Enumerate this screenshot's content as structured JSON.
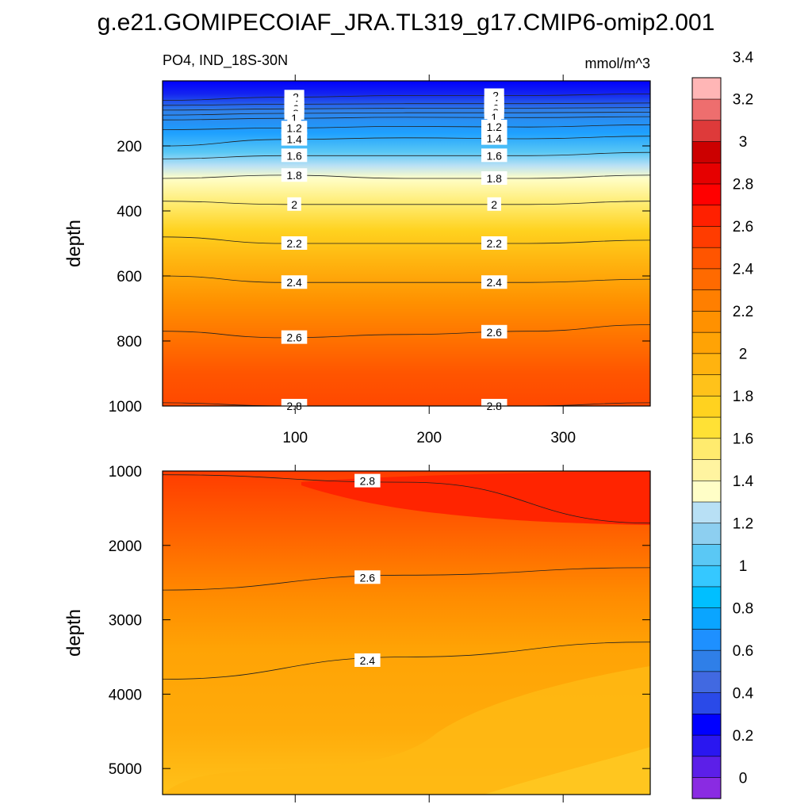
{
  "title": "g.e21.GOMIPECOIAF_JRA.TL319_g17.CMIP6-omip2.001",
  "variable_label": "PO4, IND_18S-30N",
  "units_label": "mmol/m^3",
  "colorbar": {
    "labels": [
      "0",
      "0.2",
      "0.4",
      "0.6",
      "0.8",
      "1",
      "1.2",
      "1.4",
      "1.6",
      "1.8",
      "2",
      "2.2",
      "2.4",
      "2.6",
      "2.8",
      "3",
      "3.2",
      "3.4"
    ],
    "colors": [
      "#8a2be2",
      "#5c1fe8",
      "#2a17f0",
      "#0000ff",
      "#2a4ae8",
      "#4169e1",
      "#2f7fe8",
      "#1e90ff",
      "#0aa5ff",
      "#00bfff",
      "#35c8ff",
      "#5ac8f5",
      "#8dcff0",
      "#b8e0f5",
      "#fffec7",
      "#fff4a0",
      "#ffeb6e",
      "#ffe135",
      "#ffd21f",
      "#ffc21a",
      "#ffb30f",
      "#ffa305",
      "#ff9100",
      "#ff7f00",
      "#ff6a00",
      "#ff5500",
      "#ff3c00",
      "#ff2000",
      "#ff0000",
      "#e60000",
      "#cc0000",
      "#de3a3a",
      "#ee6e6e",
      "#ffb6b6"
    ]
  },
  "chart_data": [
    {
      "type": "contour",
      "panel": "upper",
      "ylabel": "depth",
      "xlim": [
        1,
        365
      ],
      "ylim": [
        1000,
        0
      ],
      "xticks": [
        "100",
        "200",
        "300"
      ],
      "yticks": [
        "200",
        "400",
        "600",
        "800",
        "1000"
      ],
      "contours": [
        {
          "label": ".2",
          "depth": [
            60,
            50,
            45,
            45,
            40
          ]
        },
        {
          "label": ".4",
          "depth": [
            75,
            72,
            70,
            70,
            68
          ]
        },
        {
          "label": ".6",
          "depth": [
            90,
            86,
            84,
            84,
            82
          ]
        },
        {
          "label": ".8",
          "depth": [
            105,
            100,
            98,
            98,
            96
          ]
        },
        {
          "label": "1",
          "depth": [
            120,
            115,
            112,
            113,
            110
          ]
        },
        {
          "label": "1.2",
          "depth": [
            150,
            145,
            140,
            142,
            135
          ]
        },
        {
          "label": "1.4",
          "depth": [
            200,
            180,
            175,
            178,
            170
          ]
        },
        {
          "label": "1.6",
          "depth": [
            240,
            230,
            230,
            230,
            220
          ]
        },
        {
          "label": "1.8",
          "depth": [
            300,
            290,
            300,
            300,
            290
          ]
        },
        {
          "label": "2",
          "depth": [
            370,
            380,
            380,
            380,
            370
          ]
        },
        {
          "label": "2.2",
          "depth": [
            480,
            500,
            500,
            500,
            490
          ]
        },
        {
          "label": "2.4",
          "depth": [
            600,
            620,
            620,
            620,
            610
          ]
        },
        {
          "label": "2.6",
          "depth": [
            770,
            790,
            780,
            770,
            750
          ]
        },
        {
          "label": "2.8",
          "depth": [
            990,
            1000,
            1000,
            1000,
            990
          ]
        }
      ]
    },
    {
      "type": "contour",
      "panel": "lower",
      "ylabel": "depth",
      "xlim": [
        1,
        365
      ],
      "ylim": [
        5350,
        1000
      ],
      "yticks": [
        "1000",
        "2000",
        "3000",
        "4000",
        "5000"
      ],
      "contours": [
        {
          "label": "2.8",
          "depth": [
            1050,
            1150,
            1700
          ]
        },
        {
          "label": "2.6",
          "depth": [
            2600,
            2400,
            2300
          ]
        },
        {
          "label": "2.4",
          "depth": [
            3800,
            3500,
            3300
          ]
        }
      ]
    }
  ]
}
